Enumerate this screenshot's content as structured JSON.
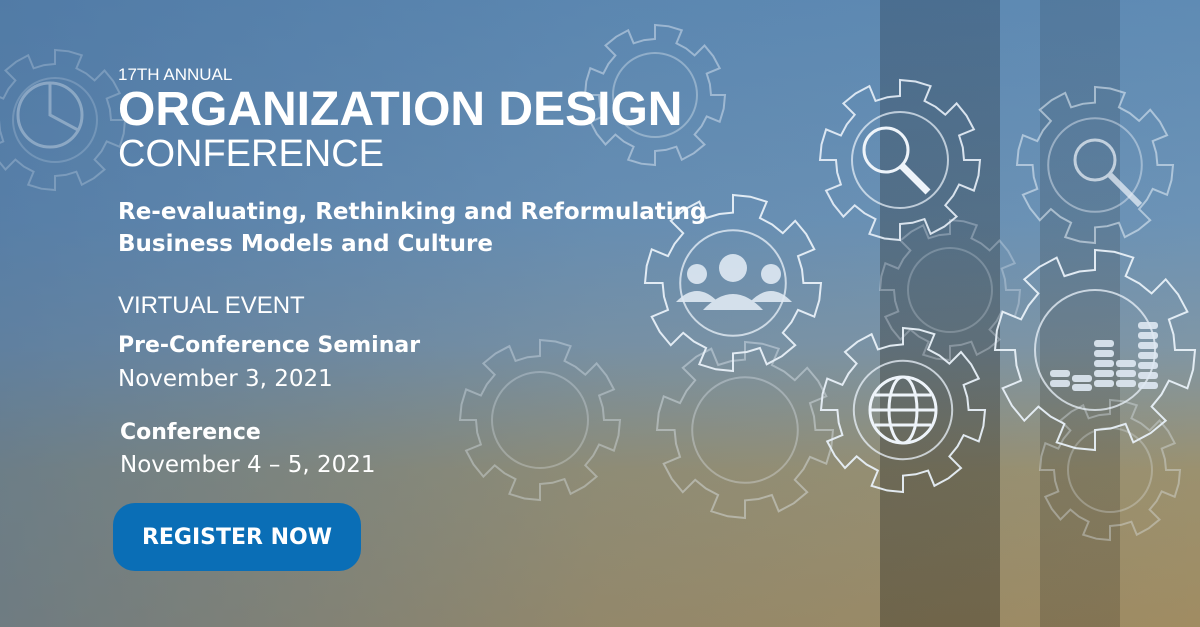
{
  "banner": {
    "annual": "17TH ANNUAL",
    "title_line1": "ORGANIZATION DESIGN",
    "title_line2": "CONFERENCE",
    "subtitle_line1": "Re-evaluating, Rethinking and Reformulating",
    "subtitle_line2": "Business Models and Culture",
    "event_type": "VIRTUAL EVENT",
    "seminar_label": "Pre-Conference Seminar",
    "seminar_date": "November 3, 2021",
    "conference_label": "Conference",
    "conference_date": "November 4 – 5, 2021",
    "register_label": "REGISTER NOW"
  },
  "colors": {
    "button": "#0a6eb6",
    "background_top": "#5f8bb4",
    "background_bottom": "#a08c62",
    "text": "#ffffff"
  },
  "icons": [
    "pie-chart-gear-icon",
    "cloud-gear-icon",
    "magnifier-gear-icon",
    "people-gear-icon",
    "globe-gear-icon",
    "bar-chart-gear-icon",
    "cogs-gear-icon",
    "line-chart-gear-icon"
  ]
}
